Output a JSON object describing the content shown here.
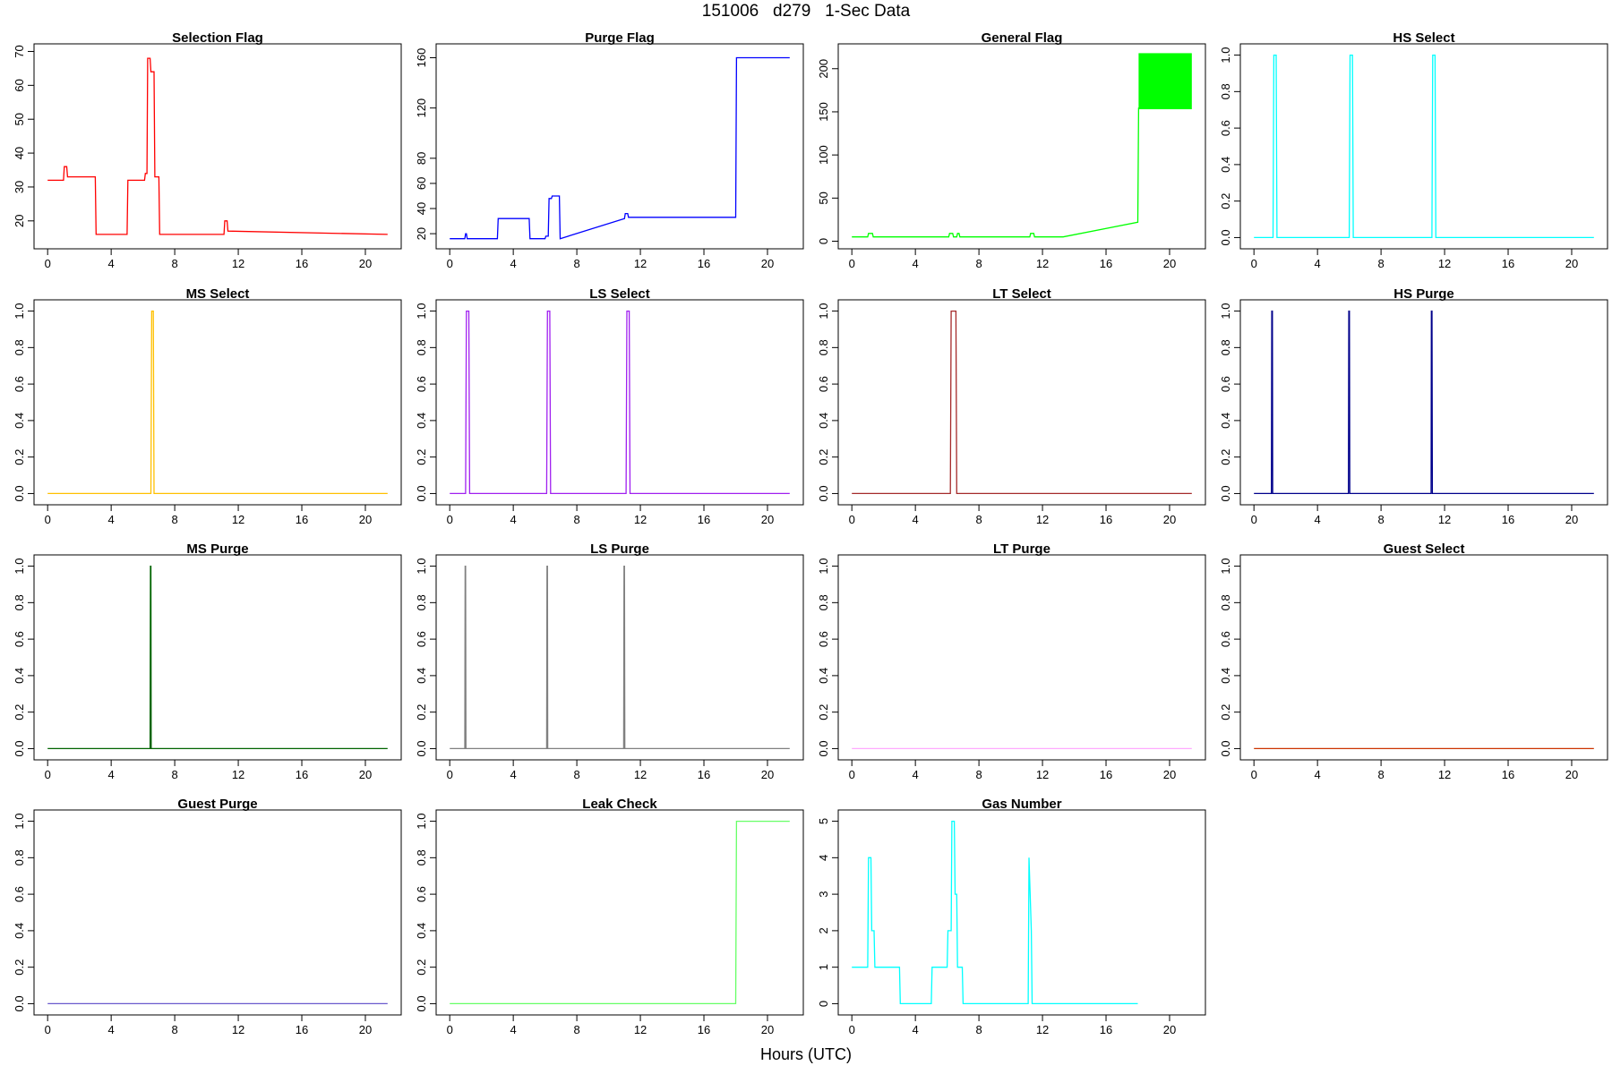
{
  "header": {
    "title": "151006   d279   1-Sec Data",
    "x_label": "Hours (UTC)"
  },
  "chart_data": [
    {
      "type": "line",
      "title": "Selection Flag",
      "color": "#ff0000",
      "xlim": [
        0,
        21.4
      ],
      "ylim": [
        14,
        70
      ],
      "xticks": [
        0,
        4,
        8,
        12,
        16,
        20
      ],
      "yticks": [
        20,
        30,
        40,
        50,
        60,
        70
      ],
      "x": [
        0,
        1.0,
        1.05,
        1.2,
        1.25,
        3.0,
        3.05,
        5.0,
        5.05,
        6.1,
        6.15,
        6.25,
        6.3,
        6.45,
        6.5,
        6.7,
        6.75,
        7.0,
        7.05,
        11.1,
        11.15,
        11.3,
        11.35,
        21.4
      ],
      "y": [
        32,
        32,
        36,
        36,
        33,
        33,
        16,
        16,
        32,
        32,
        34,
        34,
        68,
        68,
        64,
        64,
        33,
        33,
        16,
        16,
        20,
        20,
        17,
        16
      ]
    },
    {
      "type": "line",
      "title": "Purge Flag",
      "color": "#0000ff",
      "xlim": [
        0,
        21.4
      ],
      "ylim": [
        14,
        165
      ],
      "xticks": [
        0,
        4,
        8,
        12,
        16,
        20
      ],
      "yticks": [
        20,
        40,
        60,
        80,
        120,
        160
      ],
      "x": [
        0,
        0.95,
        1.0,
        1.05,
        1.1,
        3.0,
        3.05,
        5.0,
        5.05,
        6.0,
        6.05,
        6.2,
        6.25,
        6.4,
        6.45,
        6.9,
        6.95,
        11.0,
        11.05,
        11.2,
        11.25,
        18.0,
        18.05,
        21.4
      ],
      "y": [
        16,
        16,
        20,
        20,
        16,
        16,
        32,
        32,
        16,
        16,
        18,
        18,
        48,
        48,
        50,
        50,
        16,
        32,
        36,
        36,
        33,
        33,
        160,
        160
      ]
    },
    {
      "type": "line",
      "title": "General Flag",
      "color": "#00ff00",
      "xlim": [
        0,
        21.4
      ],
      "ylim": [
        0,
        220
      ],
      "xticks": [
        0,
        4,
        8,
        12,
        16,
        20
      ],
      "yticks": [
        0,
        50,
        100,
        150,
        200
      ],
      "x": [
        0,
        1.0,
        1.05,
        1.3,
        1.35,
        6.1,
        6.15,
        6.35,
        6.4,
        6.6,
        6.65,
        6.75,
        6.8,
        11.2,
        11.25,
        11.45,
        11.5,
        13.3,
        18.0,
        18.05
      ],
      "y": [
        5,
        5,
        9,
        9,
        5,
        5,
        9,
        9,
        5,
        5,
        9,
        9,
        5,
        5,
        9,
        9,
        5,
        5,
        22,
        155
      ],
      "band": {
        "x0": 18.05,
        "x1": 21.4,
        "y0": 153,
        "y1": 218
      }
    },
    {
      "type": "line",
      "title": "HS Select",
      "color": "#00ffff",
      "xlim": [
        0,
        21.4
      ],
      "ylim": [
        -0.02,
        1.02
      ],
      "xticks": [
        0,
        4,
        8,
        12,
        16,
        20
      ],
      "yticks": [
        0.0,
        0.2,
        0.4,
        0.6,
        0.8,
        1.0
      ],
      "x": [
        0,
        1.2,
        1.25,
        1.4,
        1.45,
        6.0,
        6.05,
        6.2,
        6.25,
        11.2,
        11.25,
        11.4,
        11.45,
        21.4
      ],
      "y": [
        0,
        0,
        1,
        1,
        0,
        0,
        1,
        1,
        0,
        0,
        1,
        1,
        0,
        0
      ]
    },
    {
      "type": "line",
      "title": "MS Select",
      "color": "#ffc000",
      "xlim": [
        0,
        21.4
      ],
      "ylim": [
        -0.02,
        1.02
      ],
      "xticks": [
        0,
        4,
        8,
        12,
        16,
        20
      ],
      "yticks": [
        0.0,
        0.2,
        0.4,
        0.6,
        0.8,
        1.0
      ],
      "x": [
        0,
        6.5,
        6.55,
        6.65,
        6.7,
        21.4
      ],
      "y": [
        0,
        0,
        1,
        1,
        0,
        0
      ]
    },
    {
      "type": "line",
      "title": "LS Select",
      "color": "#a020f0",
      "xlim": [
        0,
        21.4
      ],
      "ylim": [
        -0.02,
        1.02
      ],
      "xticks": [
        0,
        4,
        8,
        12,
        16,
        20
      ],
      "yticks": [
        0.0,
        0.2,
        0.4,
        0.6,
        0.8,
        1.0
      ],
      "x": [
        0,
        1.0,
        1.05,
        1.2,
        1.25,
        6.1,
        6.15,
        6.3,
        6.35,
        11.1,
        11.15,
        11.3,
        11.35,
        21.4
      ],
      "y": [
        0,
        0,
        1,
        1,
        0,
        0,
        1,
        1,
        0,
        0,
        1,
        1,
        0,
        0
      ]
    },
    {
      "type": "line",
      "title": "LT Select",
      "color": "#a52a2a",
      "xlim": [
        0,
        21.4
      ],
      "ylim": [
        -0.02,
        1.02
      ],
      "xticks": [
        0,
        4,
        8,
        12,
        16,
        20
      ],
      "yticks": [
        0.0,
        0.2,
        0.4,
        0.6,
        0.8,
        1.0
      ],
      "x": [
        0,
        6.2,
        6.25,
        6.55,
        6.6,
        21.4
      ],
      "y": [
        0,
        0,
        1,
        1,
        0,
        0
      ]
    },
    {
      "type": "line",
      "title": "HS Purge",
      "color": "#00008b",
      "xlim": [
        0,
        21.4
      ],
      "ylim": [
        -0.02,
        1.02
      ],
      "xticks": [
        0,
        4,
        8,
        12,
        16,
        20
      ],
      "yticks": [
        0.0,
        0.2,
        0.4,
        0.6,
        0.8,
        1.0
      ],
      "x": [
        0,
        1.1,
        1.12,
        1.16,
        1.18,
        5.95,
        5.97,
        6.01,
        6.03,
        11.15,
        11.17,
        11.21,
        11.23,
        21.4
      ],
      "y": [
        0,
        0,
        1,
        1,
        0,
        0,
        1,
        1,
        0,
        0,
        1,
        1,
        0,
        0
      ]
    },
    {
      "type": "line",
      "title": "MS Purge",
      "color": "#006400",
      "xlim": [
        0,
        21.4
      ],
      "ylim": [
        -0.02,
        1.02
      ],
      "xticks": [
        0,
        4,
        8,
        12,
        16,
        20
      ],
      "yticks": [
        0.0,
        0.2,
        0.4,
        0.6,
        0.8,
        1.0
      ],
      "x": [
        0,
        6.45,
        6.47,
        6.5,
        6.52,
        21.4
      ],
      "y": [
        0,
        0,
        1,
        1,
        0,
        0
      ]
    },
    {
      "type": "line",
      "title": "LS Purge",
      "color": "#808080",
      "xlim": [
        0,
        21.4
      ],
      "ylim": [
        -0.02,
        1.02
      ],
      "xticks": [
        0,
        4,
        8,
        12,
        16,
        20
      ],
      "yticks": [
        0.0,
        0.2,
        0.4,
        0.6,
        0.8,
        1.0
      ],
      "x": [
        0,
        0.95,
        0.97,
        1.0,
        1.02,
        6.1,
        6.12,
        6.15,
        6.17,
        10.95,
        10.97,
        11.0,
        11.02,
        21.4
      ],
      "y": [
        0,
        0,
        1,
        1,
        0,
        0,
        1,
        1,
        0,
        0,
        1,
        1,
        0,
        0
      ]
    },
    {
      "type": "line",
      "title": "LT Purge",
      "color": "#ffaaff",
      "xlim": [
        0,
        21.4
      ],
      "ylim": [
        -0.02,
        1.02
      ],
      "xticks": [
        0,
        4,
        8,
        12,
        16,
        20
      ],
      "yticks": [
        0.0,
        0.2,
        0.4,
        0.6,
        0.8,
        1.0
      ],
      "x": [
        0,
        21.4
      ],
      "y": [
        0,
        0
      ]
    },
    {
      "type": "line",
      "title": "Guest Select",
      "color": "#cc3300",
      "xlim": [
        0,
        21.4
      ],
      "ylim": [
        -0.02,
        1.02
      ],
      "xticks": [
        0,
        4,
        8,
        12,
        16,
        20
      ],
      "yticks": [
        0.0,
        0.2,
        0.4,
        0.6,
        0.8,
        1.0
      ],
      "x": [
        0,
        21.4
      ],
      "y": [
        0,
        0
      ]
    },
    {
      "type": "line",
      "title": "Guest Purge",
      "color": "#6a5acd",
      "xlim": [
        0,
        21.4
      ],
      "ylim": [
        -0.02,
        1.02
      ],
      "xticks": [
        0,
        4,
        8,
        12,
        16,
        20
      ],
      "yticks": [
        0.0,
        0.2,
        0.4,
        0.6,
        0.8,
        1.0
      ],
      "x": [
        0,
        21.4
      ],
      "y": [
        0,
        0
      ]
    },
    {
      "type": "line",
      "title": "Leak Check",
      "color": "#66ff66",
      "xlim": [
        0,
        21.4
      ],
      "ylim": [
        -0.02,
        1.02
      ],
      "xticks": [
        0,
        4,
        8,
        12,
        16,
        20
      ],
      "yticks": [
        0.0,
        0.2,
        0.4,
        0.6,
        0.8,
        1.0
      ],
      "x": [
        0,
        18.0,
        18.05,
        21.4
      ],
      "y": [
        0,
        0,
        1,
        1
      ]
    },
    {
      "type": "line",
      "title": "Gas Number",
      "color": "#00ffff",
      "xlim": [
        0,
        21.4
      ],
      "ylim": [
        -0.1,
        5.1
      ],
      "xticks": [
        0,
        4,
        8,
        12,
        16,
        20
      ],
      "yticks": [
        0,
        1,
        2,
        3,
        4,
        5
      ],
      "x": [
        0,
        1.0,
        1.05,
        1.2,
        1.25,
        1.4,
        1.45,
        3.0,
        3.05,
        5.0,
        5.05,
        6.0,
        6.05,
        6.25,
        6.3,
        6.45,
        6.5,
        6.6,
        6.65,
        6.95,
        7.0,
        11.1,
        11.15,
        11.3,
        11.35,
        18.0
      ],
      "y": [
        1,
        1,
        4,
        4,
        2,
        2,
        1,
        1,
        0,
        0,
        1,
        1,
        2,
        2,
        5,
        5,
        3,
        3,
        1,
        1,
        0,
        0,
        4,
        2,
        0,
        0
      ]
    }
  ]
}
